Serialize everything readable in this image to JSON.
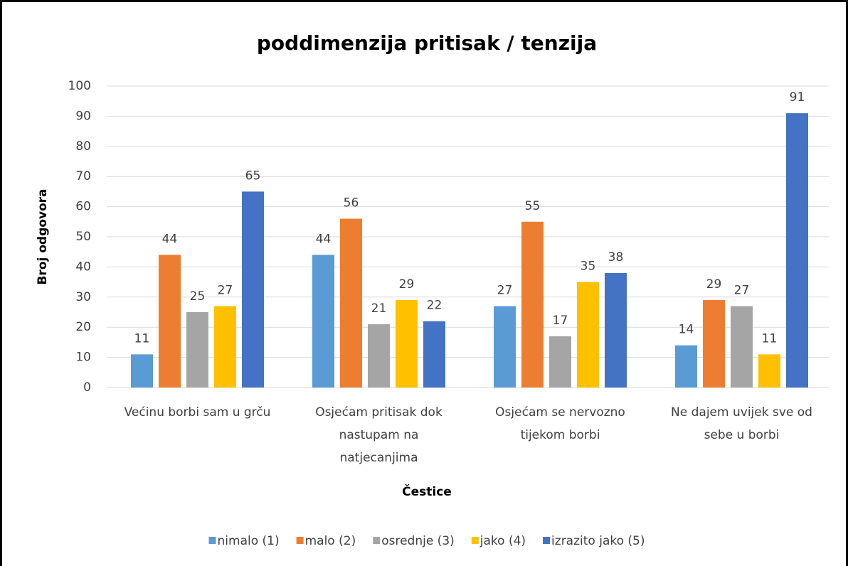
{
  "chart_data": {
    "type": "bar",
    "title": "poddimenzija pritisak / tenzija",
    "y_label": "Broj odgovora",
    "x_label": "Čestice",
    "categories": [
      [
        "Većinu borbi sam u grču"
      ],
      [
        "Osjećam pritisak dok",
        "nastupam na",
        "natjecanjima"
      ],
      [
        "Osjećam se nervozno",
        "tijekom borbi"
      ],
      [
        "Ne dajem uvijek sve od",
        "sebe u borbi"
      ]
    ],
    "series": [
      {
        "name": "nimalo (1)",
        "color": "#5b9bd5",
        "values": [
          11,
          44,
          27,
          14
        ]
      },
      {
        "name": "malo (2)",
        "color": "#ed7d31",
        "values": [
          44,
          56,
          55,
          29
        ]
      },
      {
        "name": "osrednje (3)",
        "color": "#a5a5a5",
        "values": [
          25,
          21,
          17,
          27
        ]
      },
      {
        "name": "jako (4)",
        "color": "#ffc000",
        "values": [
          27,
          29,
          35,
          11
        ]
      },
      {
        "name": "izrazito jako (5)",
        "color": "#4472c4",
        "values": [
          65,
          22,
          38,
          91
        ]
      }
    ],
    "ylim": [
      0,
      100
    ],
    "yticks": [
      0,
      10,
      20,
      30,
      40,
      50,
      60,
      70,
      80,
      90,
      100
    ],
    "grid": true,
    "legend": "bottom"
  }
}
